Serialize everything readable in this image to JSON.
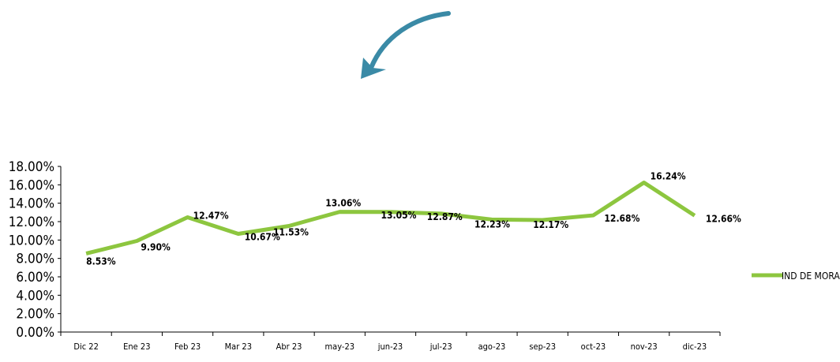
{
  "chart_data": {
    "type": "line",
    "categories": [
      "Dic 22",
      "Ene 23",
      "Feb 23",
      "Mar 23",
      "Abr 23",
      "may-23",
      "jun-23",
      "jul-23",
      "ago-23",
      "sep-23",
      "oct-23",
      "nov-23",
      "dic-23"
    ],
    "series": [
      {
        "name": "IND DE MORA",
        "values": [
          8.53,
          9.9,
          12.47,
          10.67,
          11.53,
          13.06,
          13.05,
          12.87,
          12.23,
          12.17,
          12.68,
          16.24,
          12.66
        ],
        "labels": [
          "8.53%",
          "9.90%",
          "12.47%",
          "10.67%",
          "11.53%",
          "13.06%",
          "13.05%",
          "12.87%",
          "12.23%",
          "12.17%",
          "12.68%",
          "16.24%",
          "12.66%"
        ],
        "color": "#8dc63f"
      }
    ],
    "y_ticks": [
      "0.00%",
      "2.00%",
      "4.00%",
      "6.00%",
      "8.00%",
      "10.00%",
      "12.00%",
      "14.00%",
      "16.00%",
      "18.00%"
    ],
    "ylim": [
      0,
      18
    ],
    "grid": false,
    "legend": "right",
    "title": "",
    "xlabel": "",
    "ylabel": ""
  },
  "decoration": {
    "arrow_color": "#3a8aa6",
    "axis_color": "#000000"
  }
}
